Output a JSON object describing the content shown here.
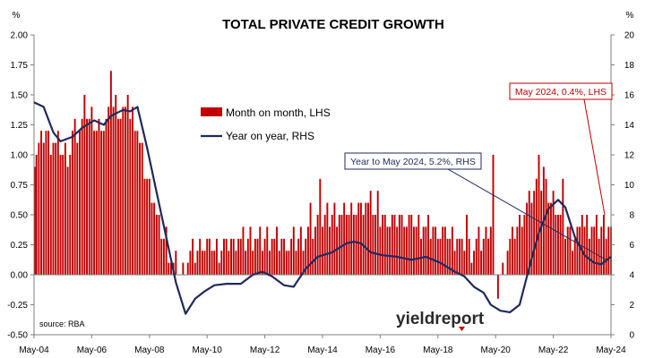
{
  "chart_data": {
    "type": "bar+line",
    "title": "TOTAL PRIVATE CREDIT GROWTH",
    "source": "source: RBA",
    "left_axis": {
      "unit": "%",
      "ylim": [
        -0.5,
        2.0
      ],
      "ticks": [
        "-0.50",
        "-0.25",
        "0.00",
        "0.25",
        "0.50",
        "0.75",
        "1.00",
        "1.25",
        "1.50",
        "1.75",
        "2.00"
      ]
    },
    "right_axis": {
      "unit": "%",
      "ylim": [
        0,
        20
      ],
      "ticks": [
        "0",
        "2",
        "4",
        "6",
        "8",
        "10",
        "12",
        "14",
        "16",
        "18",
        "20"
      ]
    },
    "x_axis": {
      "range": [
        "May-04",
        "May-24"
      ],
      "ticks": [
        "May-04",
        "May-06",
        "May-08",
        "May-10",
        "May-12",
        "May-14",
        "May-16",
        "May-18",
        "May-20",
        "May-22",
        "May-24"
      ]
    },
    "grid": false,
    "legend": {
      "placement": "center-top",
      "entries": [
        "Month on month, LHS",
        "Year on year, RHS"
      ]
    },
    "colors": {
      "bars": "#c00000",
      "line": "#1f2a5c",
      "annotation_red": "#c00000",
      "annotation_blue": "#1f2a5c"
    },
    "annotations": [
      {
        "text": "May 2024, 0.4%, LHS",
        "series": "Month on month, LHS",
        "x": "May-24",
        "y": 0.4
      },
      {
        "text": "Year to May 2024, 5.2%, RHS",
        "series": "Year on year, RHS",
        "x": "May-24",
        "y": 5.2
      }
    ],
    "series": [
      {
        "name": "Month on month, LHS",
        "axis": "left",
        "type": "bar",
        "anchors": [
          [
            "2004-05",
            1.0
          ],
          [
            "2004-09",
            1.2
          ],
          [
            "2005-01",
            1.1
          ],
          [
            "2005-06",
            1.0
          ],
          [
            "2005-11",
            1.2
          ],
          [
            "2006-03",
            1.3
          ],
          [
            "2006-07",
            1.2
          ],
          [
            "2006-11",
            1.3
          ],
          [
            "2007-03",
            1.4
          ],
          [
            "2007-07",
            1.3
          ],
          [
            "2007-11",
            1.3
          ],
          [
            "2008-03",
            0.9
          ],
          [
            "2008-07",
            0.6
          ],
          [
            "2008-09",
            0.4
          ],
          [
            "2008-12",
            0.3
          ],
          [
            "2009-03",
            0.1
          ],
          [
            "2009-06",
            0.05
          ],
          [
            "2009-09",
            0.1
          ],
          [
            "2009-12",
            0.2
          ],
          [
            "2010-03",
            0.25
          ],
          [
            "2010-06",
            0.25
          ],
          [
            "2010-09",
            0.2
          ],
          [
            "2011-01",
            0.25
          ],
          [
            "2011-06",
            0.3
          ],
          [
            "2011-12",
            0.3
          ],
          [
            "2012-06",
            0.3
          ],
          [
            "2012-12",
            0.25
          ],
          [
            "2013-06",
            0.3
          ],
          [
            "2013-12",
            0.35
          ],
          [
            "2014-06",
            0.5
          ],
          [
            "2014-12",
            0.5
          ],
          [
            "2015-06",
            0.55
          ],
          [
            "2015-12",
            0.55
          ],
          [
            "2016-06",
            0.45
          ],
          [
            "2016-12",
            0.45
          ],
          [
            "2017-06",
            0.45
          ],
          [
            "2017-12",
            0.4
          ],
          [
            "2018-06",
            0.35
          ],
          [
            "2018-12",
            0.3
          ],
          [
            "2019-06",
            0.2
          ],
          [
            "2019-12",
            0.3
          ],
          [
            "2020-03",
            0.45
          ],
          [
            "2020-05",
            -0.1
          ],
          [
            "2020-07",
            -0.05
          ],
          [
            "2020-10",
            0.2
          ],
          [
            "2021-02",
            0.4
          ],
          [
            "2021-06",
            0.6
          ],
          [
            "2021-10",
            0.7
          ],
          [
            "2022-02",
            0.7
          ],
          [
            "2022-06",
            0.6
          ],
          [
            "2022-10",
            0.4
          ],
          [
            "2023-02",
            0.3
          ],
          [
            "2023-06",
            0.4
          ],
          [
            "2023-12",
            0.4
          ],
          [
            "2024-05",
            0.4
          ]
        ],
        "spikes": [
          [
            "2006-02",
            1.5
          ],
          [
            "2006-05",
            1.4
          ],
          [
            "2007-01",
            1.7
          ],
          [
            "2007-08",
            1.5
          ],
          [
            "2008-05",
            0.8
          ],
          [
            "2013-12",
            0.6
          ],
          [
            "2014-04",
            0.8
          ],
          [
            "2016-01",
            0.7
          ],
          [
            "2016-04",
            0.7
          ],
          [
            "2019-05",
            0.5
          ],
          [
            "2020-04",
            1.0
          ],
          [
            "2020-06",
            -0.2
          ],
          [
            "2021-11",
            1.0
          ],
          [
            "2022-01",
            0.9
          ],
          [
            "2022-09",
            0.8
          ],
          [
            "2023-05",
            0.5
          ],
          [
            "2024-02",
            0.5
          ]
        ]
      },
      {
        "name": "Year on year, RHS",
        "axis": "right",
        "type": "line",
        "points": [
          [
            "2004-05",
            15.5
          ],
          [
            "2004-09",
            15.2
          ],
          [
            "2005-01",
            13.5
          ],
          [
            "2005-04",
            12.9
          ],
          [
            "2005-09",
            13.2
          ],
          [
            "2006-01",
            13.8
          ],
          [
            "2006-06",
            14.3
          ],
          [
            "2006-10",
            14.0
          ],
          [
            "2007-01",
            14.6
          ],
          [
            "2007-06",
            15.0
          ],
          [
            "2007-09",
            14.9
          ],
          [
            "2007-12",
            15.2
          ],
          [
            "2008-04",
            12.5
          ],
          [
            "2008-08",
            9.5
          ],
          [
            "2008-12",
            6.5
          ],
          [
            "2009-04",
            3.5
          ],
          [
            "2009-08",
            1.4
          ],
          [
            "2009-12",
            2.4
          ],
          [
            "2010-04",
            2.9
          ],
          [
            "2010-08",
            3.3
          ],
          [
            "2011-01",
            3.4
          ],
          [
            "2011-07",
            3.4
          ],
          [
            "2011-12",
            4.0
          ],
          [
            "2012-04",
            4.2
          ],
          [
            "2012-08",
            3.9
          ],
          [
            "2013-01",
            3.3
          ],
          [
            "2013-05",
            3.2
          ],
          [
            "2013-10",
            4.4
          ],
          [
            "2014-03",
            5.2
          ],
          [
            "2014-09",
            5.5
          ],
          [
            "2015-03",
            6.1
          ],
          [
            "2015-06",
            6.2
          ],
          [
            "2015-09",
            6.1
          ],
          [
            "2016-01",
            5.5
          ],
          [
            "2016-06",
            5.3
          ],
          [
            "2016-12",
            5.2
          ],
          [
            "2017-06",
            5.0
          ],
          [
            "2017-12",
            5.2
          ],
          [
            "2018-06",
            4.8
          ],
          [
            "2018-12",
            4.2
          ],
          [
            "2019-04",
            3.9
          ],
          [
            "2019-08",
            3.2
          ],
          [
            "2019-12",
            2.8
          ],
          [
            "2020-03",
            2.0
          ],
          [
            "2020-07",
            1.6
          ],
          [
            "2020-11",
            1.5
          ],
          [
            "2021-03",
            2.0
          ],
          [
            "2021-07",
            4.5
          ],
          [
            "2021-11",
            6.8
          ],
          [
            "2022-03",
            8.4
          ],
          [
            "2022-07",
            9.0
          ],
          [
            "2022-10",
            8.5
          ],
          [
            "2023-02",
            6.5
          ],
          [
            "2023-06",
            5.3
          ],
          [
            "2023-10",
            4.8
          ],
          [
            "2024-01",
            4.7
          ],
          [
            "2024-05",
            5.2
          ]
        ]
      }
    ]
  }
}
